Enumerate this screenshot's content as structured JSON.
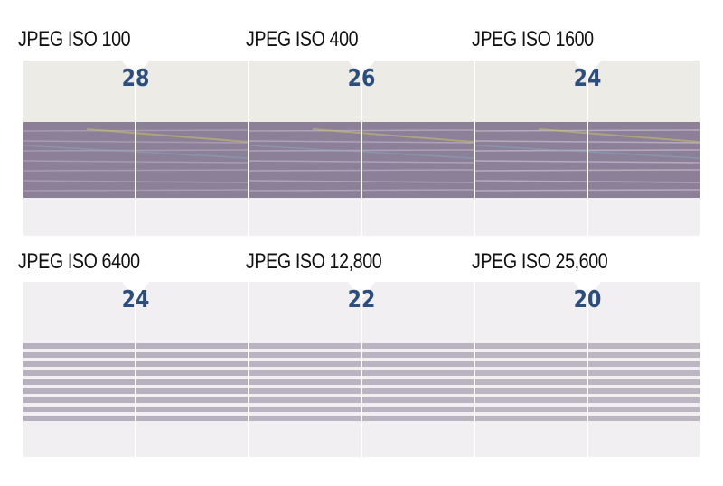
{
  "panels": [
    {
      "label": "JPEG ISO 100",
      "score": "28",
      "scheme": "clean"
    },
    {
      "label": "JPEG ISO 400",
      "score": "26",
      "scheme": "clean"
    },
    {
      "label": "JPEG ISO 1600",
      "score": "24",
      "scheme": "clean"
    },
    {
      "label": "JPEG ISO 6400",
      "score": "24",
      "scheme": "noisy"
    },
    {
      "label": "JPEG ISO 12,800",
      "score": "22",
      "scheme": "noisy"
    },
    {
      "label": "JPEG ISO 25,600",
      "score": "20",
      "scheme": "noisy"
    }
  ],
  "colors": {
    "score_text": "#2c4e7e",
    "band": "#8a7d94",
    "background": "#f1eff2"
  }
}
